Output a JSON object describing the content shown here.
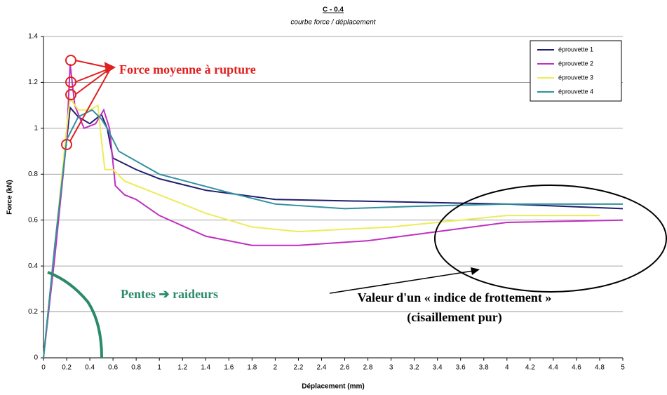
{
  "chart_data": {
    "type": "line",
    "title": "C - 0.4",
    "subtitle": "courbe force / déplacement",
    "x_label": "Déplacement (mm)",
    "y_label": "Force (kN)",
    "xlim": [
      0,
      5
    ],
    "ylim": [
      0,
      1.4
    ],
    "xticks": [
      0,
      0.2,
      0.4,
      0.6,
      0.8,
      1,
      1.2,
      1.4,
      1.6,
      1.8,
      2,
      2.2,
      2.4,
      2.6,
      2.8,
      3,
      3.2,
      3.4,
      3.6,
      3.8,
      4,
      4.2,
      4.4,
      4.6,
      4.8,
      5
    ],
    "yticks": [
      0,
      0.2,
      0.4,
      0.6,
      0.8,
      1,
      1.2,
      1.4
    ],
    "grid": true,
    "legend": "top-right",
    "series": [
      {
        "name": "éprouvette 1",
        "color": "#1f1f6e",
        "x": [
          0,
          0.1,
          0.2,
          0.23,
          0.3,
          0.4,
          0.5,
          0.55,
          0.6,
          0.8,
          1.0,
          1.4,
          2.0,
          3.0,
          4.0,
          5.0
        ],
        "values": [
          0,
          0.5,
          0.95,
          1.09,
          1.05,
          1.02,
          1.06,
          1.0,
          0.87,
          0.82,
          0.78,
          0.73,
          0.69,
          0.68,
          0.67,
          0.65
        ]
      },
      {
        "name": "éprouvette 2",
        "color": "#c030c0",
        "x": [
          0,
          0.1,
          0.2,
          0.23,
          0.27,
          0.35,
          0.45,
          0.52,
          0.57,
          0.62,
          0.7,
          0.8,
          1.0,
          1.4,
          1.8,
          2.2,
          2.8,
          3.4,
          4.0,
          5.0
        ],
        "values": [
          0,
          0.45,
          0.95,
          1.28,
          1.1,
          1.0,
          1.02,
          1.08,
          1.0,
          0.75,
          0.71,
          0.69,
          0.62,
          0.53,
          0.49,
          0.49,
          0.51,
          0.55,
          0.59,
          0.6
        ]
      },
      {
        "name": "éprouvette 3",
        "color": "#ecec5a",
        "x": [
          0,
          0.1,
          0.2,
          0.23,
          0.3,
          0.4,
          0.47,
          0.5,
          0.53,
          0.6,
          0.7,
          1.0,
          1.4,
          1.8,
          2.2,
          3.0,
          4.0,
          4.8
        ],
        "values": [
          0,
          0.5,
          1.0,
          1.13,
          1.08,
          1.08,
          1.1,
          0.95,
          0.82,
          0.82,
          0.77,
          0.71,
          0.63,
          0.57,
          0.55,
          0.57,
          0.62,
          0.62
        ]
      },
      {
        "name": "éprouvette 4",
        "color": "#3090a0",
        "x": [
          0,
          0.1,
          0.2,
          0.3,
          0.42,
          0.5,
          0.55,
          0.65,
          1.0,
          1.6,
          2.0,
          2.6,
          3.2,
          4.0,
          5.0
        ],
        "values": [
          0,
          0.5,
          0.95,
          1.05,
          1.08,
          1.04,
          1.0,
          0.9,
          0.8,
          0.72,
          0.67,
          0.65,
          0.66,
          0.67,
          0.67
        ]
      }
    ],
    "annotations": [
      "Force moyenne à rupture",
      "Pentes ➔ raideurs",
      "Valeur d'un « indice de frottement »",
      "(cisaillement pur)"
    ]
  }
}
